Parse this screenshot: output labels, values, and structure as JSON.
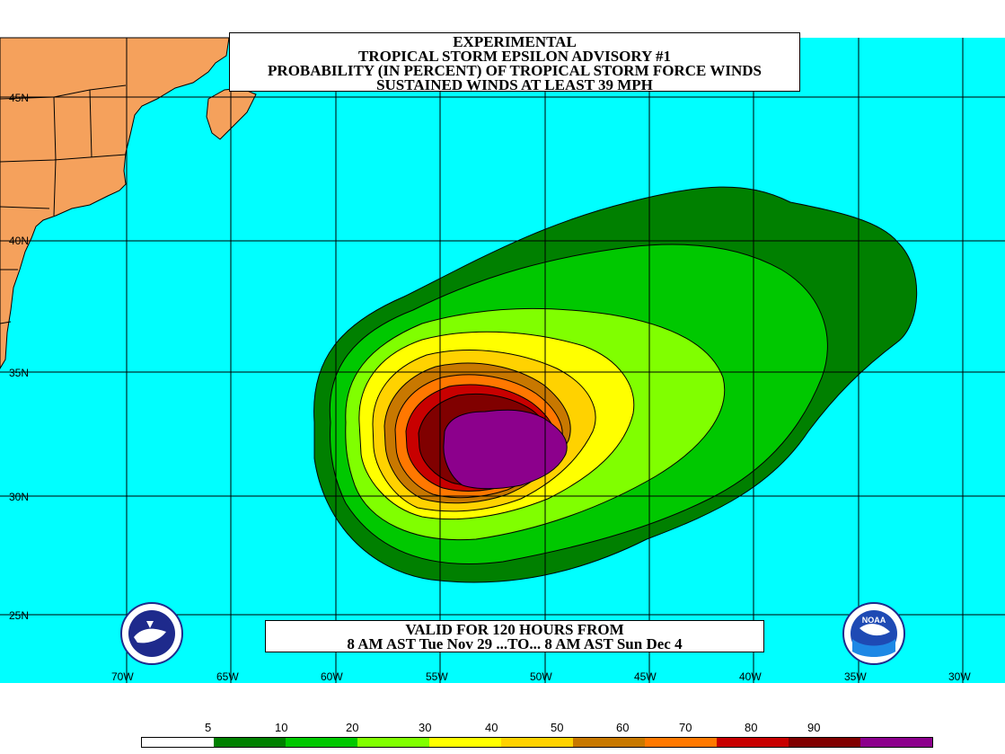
{
  "title": {
    "line1": "EXPERIMENTAL",
    "line2": "TROPICAL STORM EPSILON ADVISORY #1",
    "line3": "PROBABILITY (IN PERCENT) OF TROPICAL STORM FORCE WINDS",
    "line4": "SUSTAINED WINDS AT LEAST 39 MPH"
  },
  "valid": {
    "line1": "VALID FOR 120 HOURS FROM",
    "line2": "8 AM AST Tue Nov 29 ...TO... 8 AM AST Sun Dec 4"
  },
  "lat_labels": [
    "45N",
    "40N",
    "35N",
    "30N",
    "25N"
  ],
  "lon_labels": [
    "70W",
    "65W",
    "60W",
    "55W",
    "50W",
    "45W",
    "40W",
    "35W",
    "30W"
  ],
  "legend": {
    "numbers": [
      "5",
      "10",
      "20",
      "30",
      "40",
      "50",
      "60",
      "70",
      "80",
      "90"
    ],
    "colors": [
      "#ffffff",
      "#008000",
      "#00c800",
      "#80ff00",
      "#ffff00",
      "#ffd200",
      "#c87800",
      "#ff7800",
      "#c80000",
      "#800000",
      "#8c008c"
    ]
  },
  "colors": {
    "ocean": "#00ffff",
    "land": "#f5a15c",
    "grid": "#000000"
  }
}
